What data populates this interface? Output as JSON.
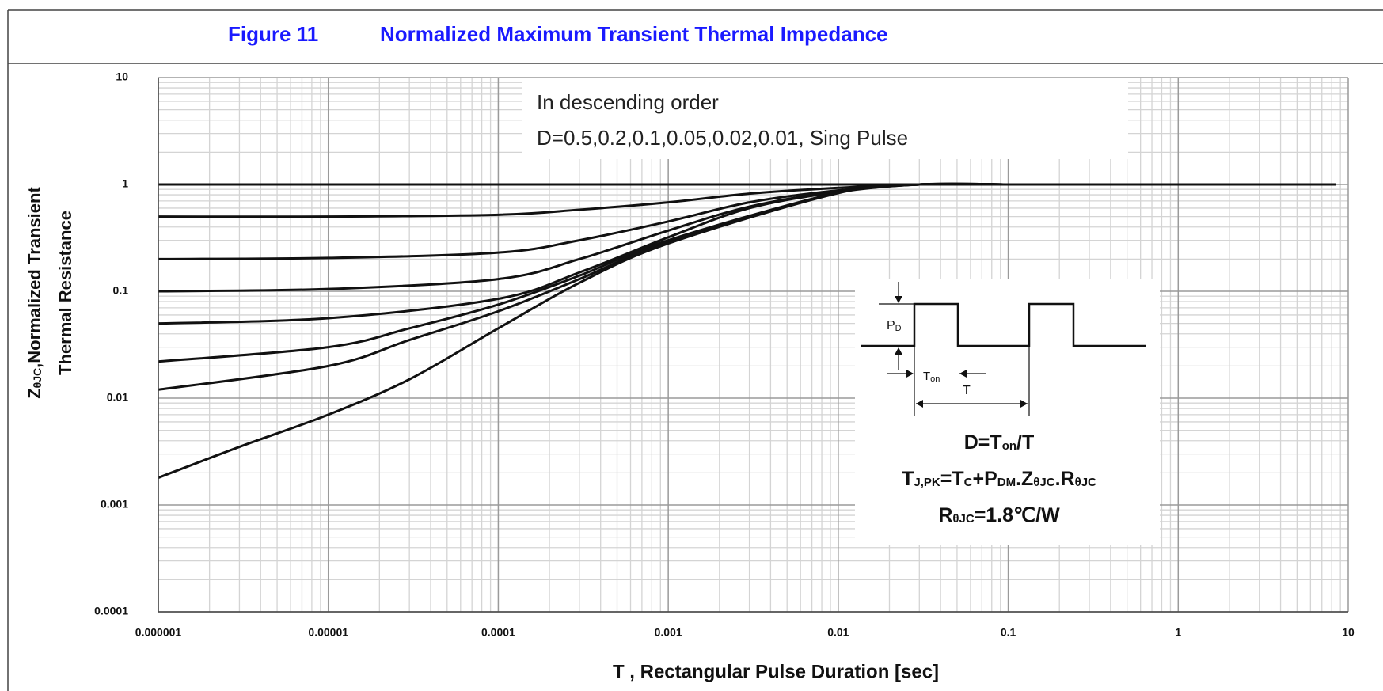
{
  "chart_data": {
    "type": "line",
    "title": [
      "Figure 11",
      "Normalized Maximum Transient Thermal Impedance"
    ],
    "title_color": "#1a1aff",
    "xlabel": "T , Rectangular Pulse Duration [sec]",
    "ylabel": [
      [
        "Z",
        "θJC",
        ",Normalized Transient"
      ],
      [
        "Thermal Resistance"
      ]
    ],
    "xlog": true,
    "ylog": true,
    "grid": true,
    "xlim": [
      1e-06,
      10
    ],
    "ylim": [
      0.0001,
      10
    ],
    "xticks": [
      1e-06,
      1e-05,
      0.0001,
      0.001,
      0.01,
      0.1,
      1,
      10
    ],
    "yticks": [
      0.0001,
      0.001,
      0.01,
      0.1,
      1,
      10
    ],
    "annotations": [
      "In  descending  order",
      "D=0.5,0.2,0.1,0.05,0.02,0.01, Sing Pulse"
    ],
    "inset_labels": {
      "pd": [
        "P",
        "D"
      ],
      "ton": [
        "T",
        "on"
      ],
      "t": "T"
    },
    "formulas": [
      [
        "D=T",
        "on",
        "/T"
      ],
      [
        "T",
        "J,PK",
        "=T",
        "C",
        "+P",
        "DM",
        ".Z",
        "θJC",
        ".R",
        "θJC"
      ],
      [
        "R",
        "θJC",
        "=1.8℃/W"
      ]
    ],
    "series": [
      {
        "color": "#111111",
        "x": [
          1e-06,
          8.5
        ],
        "values": [
          1,
          1
        ]
      },
      {
        "color": "#111111",
        "x": [
          1e-06,
          1e-05,
          0.0001,
          0.0003,
          0.001,
          0.003,
          0.01,
          0.03,
          0.1
        ],
        "values": [
          0.5,
          0.5,
          0.52,
          0.58,
          0.68,
          0.82,
          0.93,
          1,
          1
        ]
      },
      {
        "color": "#111111",
        "x": [
          1e-06,
          1e-05,
          0.0001,
          0.0003,
          0.001,
          0.003,
          0.01,
          0.03,
          0.1
        ],
        "values": [
          0.2,
          0.205,
          0.23,
          0.3,
          0.45,
          0.68,
          0.88,
          1,
          1
        ]
      },
      {
        "color": "#111111",
        "x": [
          1e-06,
          1e-05,
          0.0001,
          0.0003,
          0.001,
          0.003,
          0.01,
          0.03,
          0.1
        ],
        "values": [
          0.1,
          0.105,
          0.13,
          0.2,
          0.37,
          0.62,
          0.86,
          1,
          1
        ]
      },
      {
        "color": "#111111",
        "x": [
          1e-06,
          1e-05,
          0.0001,
          0.0003,
          0.001,
          0.003,
          0.01,
          0.03,
          0.1
        ],
        "values": [
          0.05,
          0.056,
          0.085,
          0.15,
          0.32,
          0.6,
          0.85,
          1,
          1
        ]
      },
      {
        "color": "#111111",
        "x": [
          1e-06,
          1e-05,
          3e-05,
          0.0001,
          0.0003,
          0.001,
          0.01,
          0.03,
          0.1
        ],
        "values": [
          0.022,
          0.03,
          0.045,
          0.075,
          0.14,
          0.3,
          0.84,
          1,
          1
        ]
      },
      {
        "color": "#111111",
        "x": [
          1e-06,
          1e-05,
          3e-05,
          0.0001,
          0.0003,
          0.001,
          0.01,
          0.03,
          0.1
        ],
        "values": [
          0.012,
          0.02,
          0.035,
          0.065,
          0.13,
          0.29,
          0.84,
          1,
          1
        ]
      },
      {
        "color": "#111111",
        "x": [
          1e-06,
          3e-06,
          1e-05,
          3e-05,
          0.0001,
          0.0003,
          0.001,
          0.01,
          0.03,
          0.1
        ],
        "values": [
          0.0018,
          0.0035,
          0.007,
          0.015,
          0.045,
          0.12,
          0.28,
          0.83,
          1,
          1
        ]
      }
    ]
  }
}
